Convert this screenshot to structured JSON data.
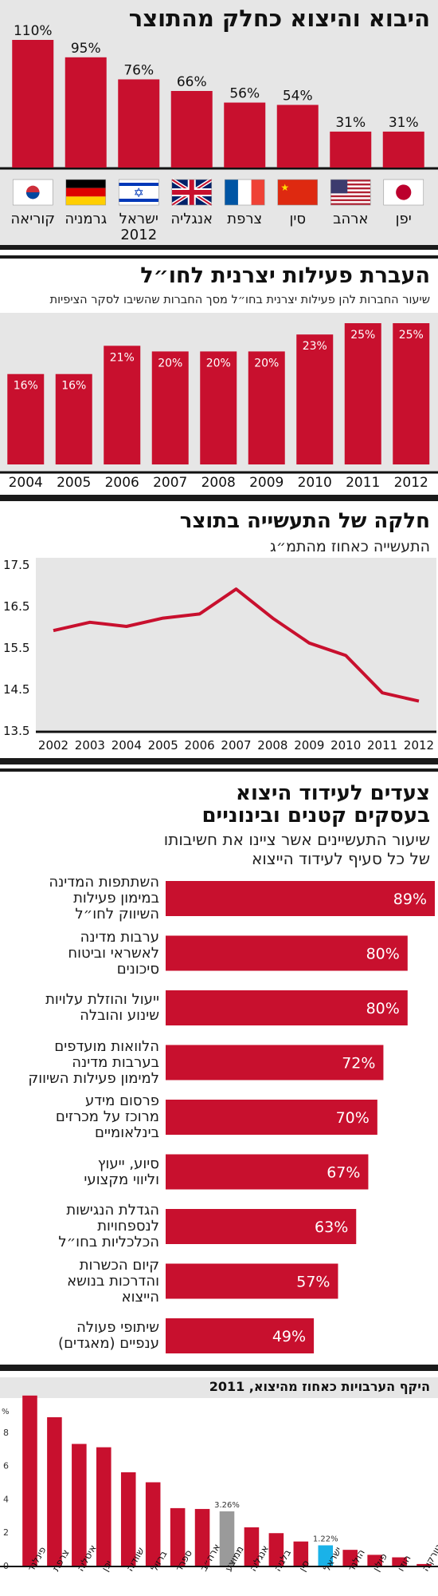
{
  "colors": {
    "bar": "#c8102e",
    "gray": "#9a9a9a",
    "cyan": "#1ab2e8",
    "panel": "#e6e6e6",
    "line": "#c8102e"
  },
  "section1": {
    "title": "היבוא והיצוא כחלק מהתוצר",
    "chart_data": {
      "type": "bar",
      "categories": [
        "קוריאה",
        "גרמניה",
        "ישראל 2012",
        "אנגליה",
        "צרפת",
        "סין",
        "ארהב",
        "יפן"
      ],
      "values": [
        110,
        95,
        76,
        66,
        56,
        54,
        31,
        31
      ],
      "value_labels": [
        "110%",
        "95%",
        "76%",
        "66%",
        "56%",
        "54%",
        "31%",
        "31%"
      ],
      "flags": [
        "korea-flag",
        "germany-flag",
        "israel-flag",
        "uk-flag",
        "france-flag",
        "china-flag",
        "usa-flag",
        "japan-flag"
      ],
      "ylim": [
        0,
        110
      ]
    }
  },
  "section2": {
    "title": "העברת פעילות יצרנית לחו״ל",
    "subtitle": "שיעור החברות להן פעילות יצרנית בחו״ל מסך החברות שהשיבו לסקר הציפיות",
    "chart_data": {
      "type": "bar",
      "categories": [
        "2004",
        "2005",
        "2006",
        "2007",
        "2008",
        "2009",
        "2010",
        "2011",
        "2012"
      ],
      "values": [
        16,
        16,
        21,
        20,
        20,
        20,
        23,
        25,
        25
      ],
      "value_labels": [
        "16%",
        "16%",
        "21%",
        "20%",
        "20%",
        "20%",
        "23%",
        "25%",
        "25%"
      ],
      "ylim": [
        0,
        25
      ]
    }
  },
  "section3": {
    "title": "חלקה של התעשייה בתוצר",
    "subtitle": "התעשייה כאחוז מהתמ״ג",
    "chart_data": {
      "type": "line",
      "x": [
        "2002",
        "2003",
        "2004",
        "2005",
        "2006",
        "2007",
        "2008",
        "2009",
        "2010",
        "2011",
        "2012"
      ],
      "values": [
        15.9,
        16.1,
        16.0,
        16.2,
        16.3,
        16.9,
        16.2,
        15.6,
        15.3,
        14.4,
        14.2
      ],
      "yticks": [
        "17.5",
        "16.5",
        "15.5",
        "14.5",
        "13.5"
      ],
      "ylim": [
        13.5,
        17.5
      ],
      "grid": false
    }
  },
  "section4": {
    "title_line1": "צעדים לעידוד היצוא",
    "title_line2": "בעסקים קטנים ובינוניים",
    "subtitle_line1": "שיעור התעשיינים אשר ציינו את חשיבותו",
    "subtitle_line2": "של כל סעיף לעידוד הייצוא",
    "chart_data": {
      "type": "bar",
      "orientation": "horizontal",
      "categories": [
        "השתתפות המדינה\nבמימון פעילות\nהשיווק לחו״ל",
        "ערבות מדינה\nלאשראי וביטוח\nסיכונים",
        "ייעול והוזלת עלויות\nשינוע והובלה",
        "הלוואות מועדפים\nבערבות מדינה\nלמימון פעילות השיווק",
        "פרסום מידע\nמרוכז על מכרזים\nבינלאומיים",
        "סיוע, ייעוץ\nוליווי מקצועי",
        "הגדלת הנגישות\nלנספחויות\nהכלכליות בחו״ל",
        "קיום הכשרות\nוהדרכות בנושא\nהייצוא",
        "שיתופי פעולה\nענפיים (מאגדים)"
      ],
      "values": [
        89,
        80,
        80,
        72,
        70,
        67,
        63,
        57,
        49
      ],
      "value_labels": [
        "89%",
        "80%",
        "80%",
        "72%",
        "70%",
        "67%",
        "63%",
        "57%",
        "49%"
      ],
      "xlim": [
        0,
        89
      ]
    }
  },
  "section5": {
    "title": "היקף הערבויות כאחוז מהיצוא, 2011",
    "unit": "%",
    "chart_data": {
      "type": "bar",
      "categories": [
        "פינלנד",
        "צרפת",
        "איטליה",
        "יפן",
        "שוודיה",
        "ברזיל",
        "ספרד",
        "ארה״ב",
        "ממוצע",
        "אנגליה",
        "בלגיה",
        "סין",
        "ישראל",
        "הולנד",
        "פולין",
        "הודו",
        "טורקיה"
      ],
      "values": [
        10.2,
        8.9,
        7.3,
        7.1,
        5.6,
        5.0,
        3.45,
        3.4,
        3.26,
        2.3,
        1.95,
        1.45,
        1.22,
        0.95,
        0.65,
        0.5,
        0.1
      ],
      "highlight": {
        "ממוצע": "gray",
        "ישראל": "cyan"
      },
      "annotations": {
        "ממוצע": "3.26%",
        "ישראל": "1.22%"
      },
      "yticks": [
        "0",
        "2",
        "4",
        "6",
        "8"
      ],
      "ylim": [
        0,
        10
      ]
    }
  }
}
